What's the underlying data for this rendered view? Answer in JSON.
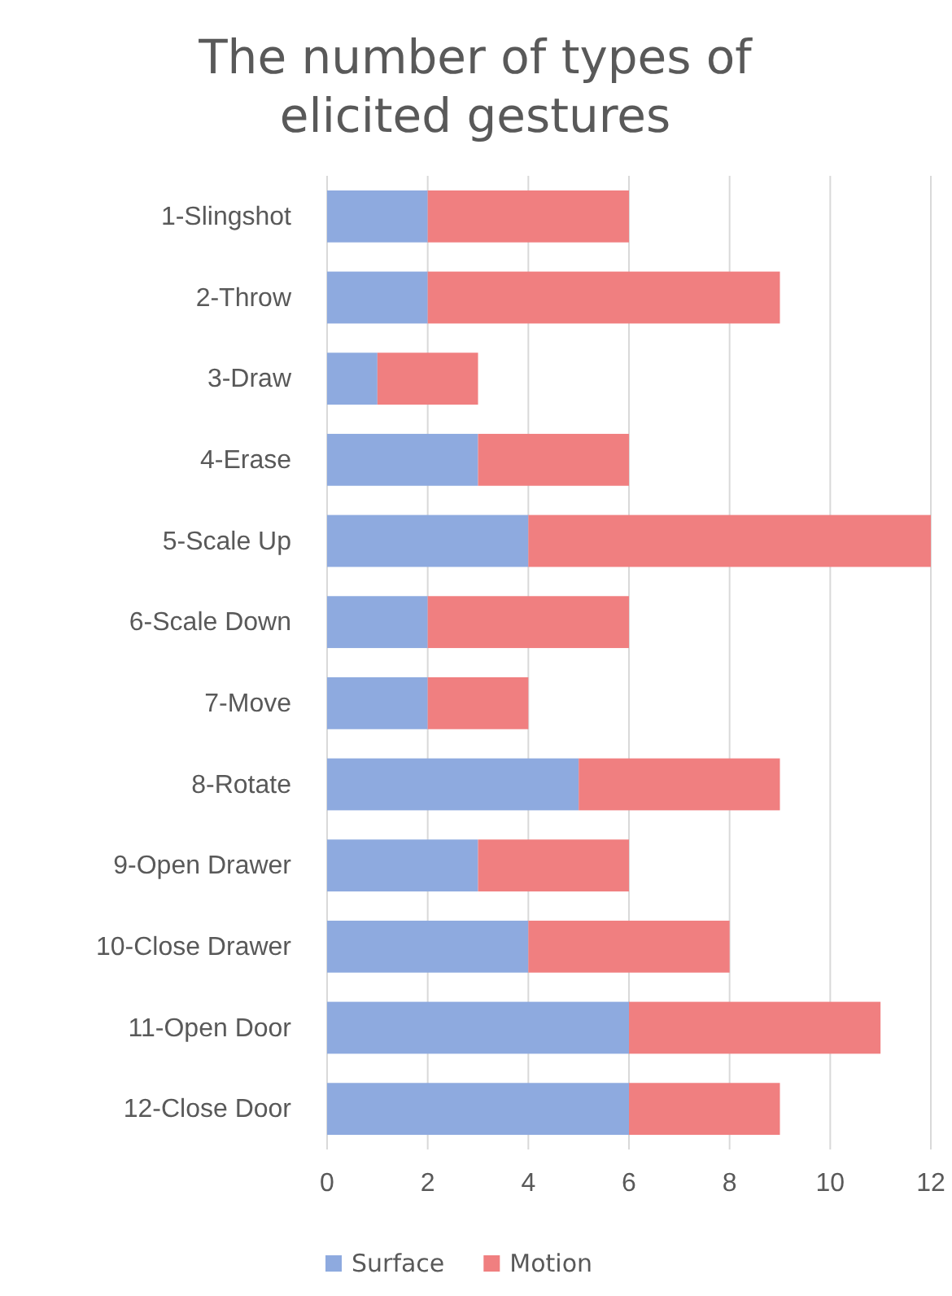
{
  "chart_data": {
    "type": "bar",
    "orientation": "horizontal",
    "stacked": true,
    "title": "The number of types of elicited gestures",
    "categories": [
      "1-Slingshot",
      "2-Throw",
      "3-Draw",
      "4-Erase",
      "5-Scale Up",
      "6-Scale Down",
      "7-Move",
      "8-Rotate",
      "9-Open Drawer",
      "10-Close Drawer",
      "11-Open Door",
      "12-Close Door"
    ],
    "series": [
      {
        "name": "Surface",
        "color": "#8eaadf",
        "values": [
          2,
          2,
          1,
          3,
          4,
          2,
          2,
          5,
          3,
          4,
          6,
          6
        ]
      },
      {
        "name": "Motion",
        "color": "#f07f80",
        "values": [
          4,
          7,
          2,
          3,
          8,
          4,
          2,
          4,
          3,
          4,
          5,
          3
        ]
      }
    ],
    "xlim": [
      0,
      12
    ],
    "xticks": [
      0,
      2,
      4,
      6,
      8,
      10,
      12
    ],
    "grid": "x",
    "legend": "bottom"
  }
}
